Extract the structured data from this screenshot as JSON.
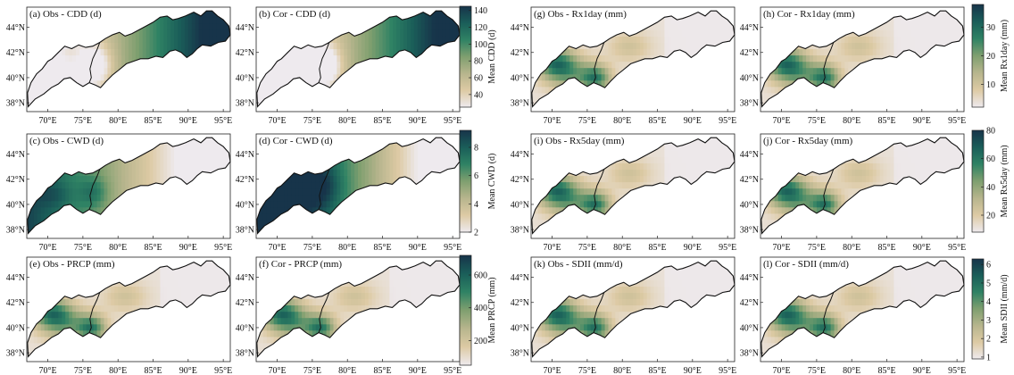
{
  "panels": [
    {
      "id": "a",
      "title": "(a) Obs - CDD (d)",
      "index": "CDD",
      "shading": "cdd_obs"
    },
    {
      "id": "b",
      "title": "(b) Cor - CDD (d)",
      "index": "CDD",
      "shading": "cdd_cor"
    },
    {
      "id": "c",
      "title": "(c) Obs - CWD (d)",
      "index": "CWD",
      "shading": "cwd_obs"
    },
    {
      "id": "d",
      "title": "(d) Cor - CWD (d)",
      "index": "CWD",
      "shading": "cwd_cor"
    },
    {
      "id": "e",
      "title": "(e) Obs - PRCP (mm)",
      "index": "PRCP",
      "shading": "wet"
    },
    {
      "id": "f",
      "title": "(f) Cor - PRCP (mm)",
      "index": "PRCP",
      "shading": "wet"
    },
    {
      "id": "g",
      "title": "(g) Obs - Rx1day (mm)",
      "index": "Rx1day",
      "shading": "wet"
    },
    {
      "id": "h",
      "title": "(h) Cor - Rx1day (mm)",
      "index": "Rx1day",
      "shading": "wet"
    },
    {
      "id": "i",
      "title": "(i) Obs - Rx5day (mm)",
      "index": "Rx5day",
      "shading": "wet"
    },
    {
      "id": "j",
      "title": "(j) Cor - Rx5day (mm)",
      "index": "Rx5day",
      "shading": "wet"
    },
    {
      "id": "k",
      "title": "(k) Obs - SDII (mm/d)",
      "index": "SDII",
      "shading": "wet"
    },
    {
      "id": "l",
      "title": "(l) Cor - SDII (mm/d)",
      "index": "SDII",
      "shading": "wet"
    }
  ],
  "colorbars": [
    {
      "index": "CDD",
      "label": "Mean CDD (d)",
      "ticks": [
        40,
        60,
        80,
        100,
        120,
        140
      ],
      "range": [
        25,
        145
      ]
    },
    {
      "index": "CWD",
      "label": "Mean CWD (d)",
      "ticks": [
        2,
        4,
        6,
        8
      ],
      "range": [
        2,
        9.2
      ]
    },
    {
      "index": "PRCP",
      "label": "Mean PRCP (mm)",
      "ticks": [
        200,
        400,
        600
      ],
      "range": [
        50,
        720
      ]
    },
    {
      "index": "Rx1day",
      "label": "Mean Rx1day (mm)",
      "ticks": [
        10,
        20,
        30
      ],
      "range": [
        2,
        38
      ]
    },
    {
      "index": "Rx5day",
      "label": "Mean Rx5day (mm)",
      "ticks": [
        20,
        40,
        60,
        80
      ],
      "range": [
        8,
        80
      ]
    },
    {
      "index": "SDII",
      "label": "Mean SDII (mm/d)",
      "ticks": [
        1,
        2,
        3,
        4,
        5,
        6
      ],
      "range": [
        0.9,
        6.3
      ]
    }
  ],
  "map": {
    "lon_range": [
      67,
      96
    ],
    "lat_range": [
      37.3,
      45.6
    ],
    "lon_ticks": [
      70,
      75,
      80,
      85,
      90,
      95
    ],
    "lon_tick_labels": [
      "70°E",
      "75°E",
      "80°E",
      "85°E",
      "90°E",
      "95°E"
    ],
    "lat_ticks": [
      38,
      40,
      42,
      44
    ],
    "lat_tick_labels": [
      "38°N",
      "40°N",
      "42°N",
      "44°N"
    ]
  },
  "colors": {
    "colormap": [
      "#eeeaee",
      "#ddcaa4",
      "#b7b58d",
      "#7f9f6f",
      "#2f8264",
      "#1a5e59",
      "#17344a"
    ],
    "outline": "#111111",
    "background": "#ffffff"
  }
}
